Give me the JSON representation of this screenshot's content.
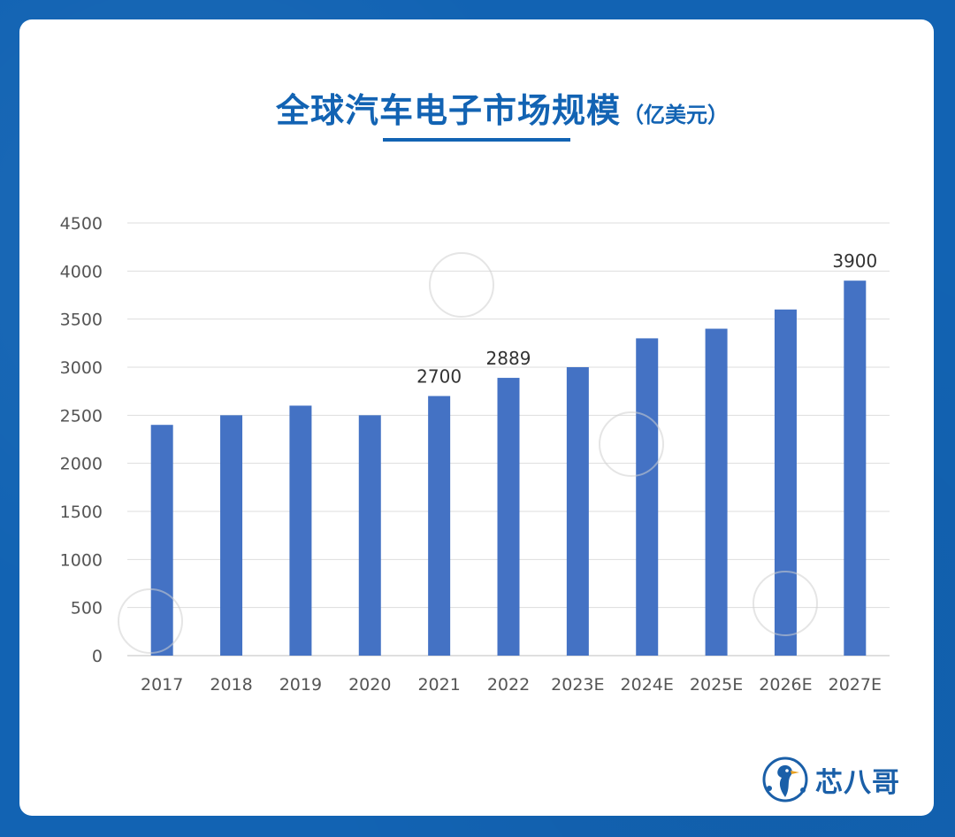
{
  "brand": {
    "name": "芯八哥"
  },
  "chart_data": {
    "type": "bar",
    "title": "全球汽车电子市场规模",
    "unit": "（亿美元）",
    "categories": [
      "2017",
      "2018",
      "2019",
      "2020",
      "2021",
      "2022",
      "2023E",
      "2024E",
      "2025E",
      "2026E",
      "2027E"
    ],
    "values": [
      2400,
      2500,
      2600,
      2500,
      2700,
      2889,
      3000,
      3300,
      3400,
      3600,
      3900
    ],
    "data_labels": {
      "2021": "2700",
      "2022": "2889",
      "2027E": "3900"
    },
    "yticks": [
      "0",
      "500",
      "1000",
      "1500",
      "2000",
      "2500",
      "3000",
      "3500",
      "4000",
      "4500"
    ],
    "ylim": [
      0,
      4500
    ],
    "bar_color": "#4472c4",
    "grid": true
  }
}
